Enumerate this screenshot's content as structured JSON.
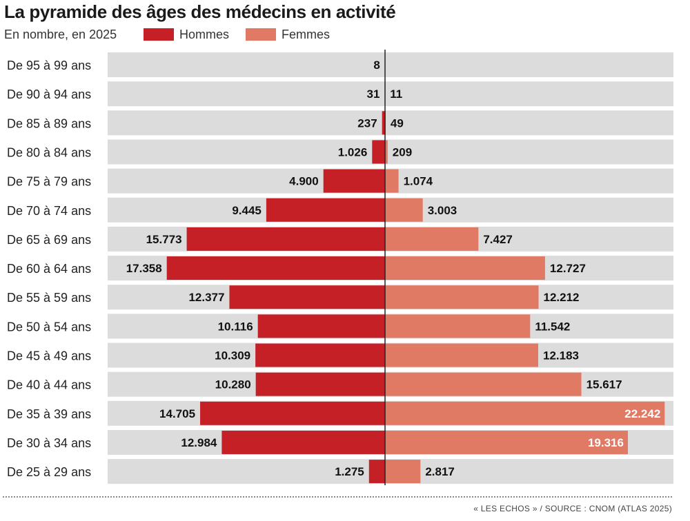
{
  "chart_data": {
    "type": "bar",
    "orientation": "horizontal",
    "title": "La pyramide des âges des médecins en activité",
    "subtitle": "En nombre, en 2025",
    "categories": [
      "De 95 à 99 ans",
      "De 90 à 94 ans",
      "De 85 à 89 ans",
      "De 80 à 84 ans",
      "De 75 à 79 ans",
      "De 70 à 74 ans",
      "De 65 à 69 ans",
      "De 60 à 64 ans",
      "De 55 à 59 ans",
      "De 50 à 54 ans",
      "De 45 à 49 ans",
      "De 40 à 44 ans",
      "De 35 à 39 ans",
      "De 30 à 34 ans",
      "De 25 à 29 ans"
    ],
    "series": [
      {
        "name": "Hommes",
        "color": "#c42026",
        "values": [
          8,
          31,
          237,
          1026,
          4900,
          9445,
          15773,
          17358,
          12377,
          10116,
          10309,
          10280,
          14705,
          12984,
          1275
        ],
        "labels": [
          "8",
          "31",
          "237",
          "1.026",
          "4.900",
          "9.445",
          "15.773",
          "17.358",
          "12.377",
          "10.116",
          "10.309",
          "10.280",
          "14.705",
          "12.984",
          "1.275"
        ]
      },
      {
        "name": "Femmes",
        "color": "#e07a64",
        "values": [
          0,
          11,
          49,
          209,
          1074,
          3003,
          7427,
          12727,
          12212,
          11542,
          12183,
          15617,
          22242,
          19316,
          2817
        ],
        "labels": [
          "",
          "11",
          "49",
          "209",
          "1.074",
          "3.003",
          "7.427",
          "12.727",
          "12.212",
          "11.542",
          "12.183",
          "15.617",
          "22.242",
          "19.316",
          "2.817"
        ]
      }
    ],
    "xlim": [
      0,
      22500
    ],
    "row_background": "#dcdcdc",
    "legend": "top-left"
  },
  "legend": {
    "men": "Hommes",
    "women": "Femmes"
  },
  "source": "« LES ECHOS » / SOURCE : CNOM (ATLAS 2025)"
}
